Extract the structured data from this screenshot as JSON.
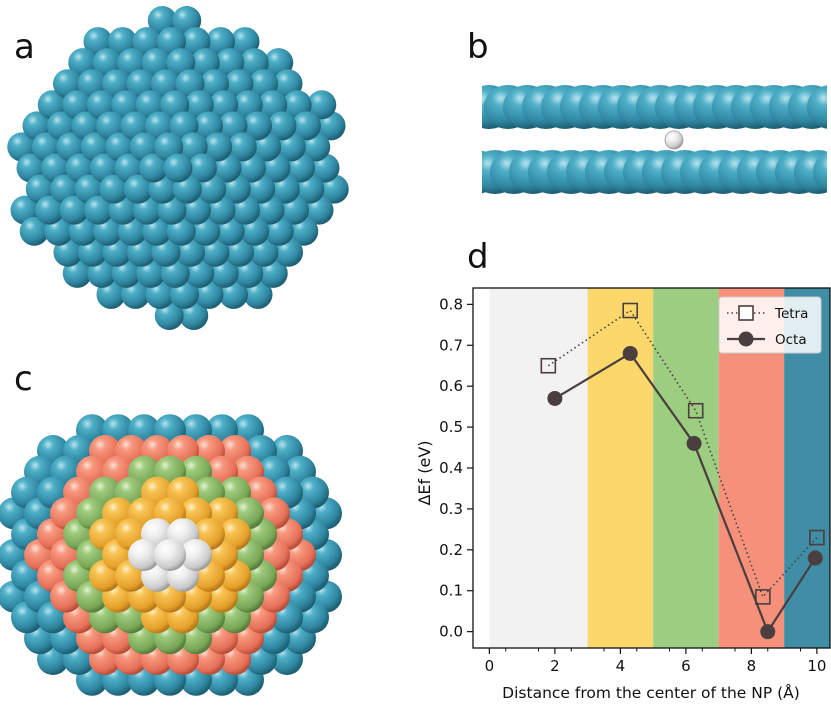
{
  "panels": {
    "a": "a",
    "b": "b",
    "c": "c",
    "d": "d"
  },
  "colors": {
    "sphere_blue": "#3a94ab",
    "sphere_salmon": "#f38a70",
    "sphere_green": "#8fbd6b",
    "sphere_yellow": "#f3b63f",
    "sphere_white": "#e4e4e4",
    "marker": "#4a3e3e"
  },
  "chart_data": {
    "type": "line",
    "xlabel": "Distance from the center of the NP (Å)",
    "ylabel": "ΔEf (eV)",
    "xlim": [
      -0.5,
      10.4
    ],
    "ylim": [
      -0.04,
      0.84
    ],
    "xticks": [
      0,
      2,
      4,
      6,
      8,
      10
    ],
    "yticks": [
      0.0,
      0.1,
      0.2,
      0.3,
      0.4,
      0.5,
      0.6,
      0.7,
      0.8
    ],
    "ytick_labels": [
      "0.0",
      "0.1",
      "0.2",
      "0.3",
      "0.4",
      "0.5",
      "0.6",
      "0.7",
      "0.8"
    ],
    "grid": false,
    "legend": "top-right",
    "bands": [
      {
        "x0": 0,
        "x1": 3,
        "color": "#f2f2f2"
      },
      {
        "x0": 3,
        "x1": 5,
        "color": "#fcd86c"
      },
      {
        "x0": 5,
        "x1": 7,
        "color": "#9ccd80"
      },
      {
        "x0": 7,
        "x1": 9,
        "color": "#f5917b"
      },
      {
        "x0": 9,
        "x1": 10.4,
        "color": "#3f8ea6"
      }
    ],
    "series": [
      {
        "name": "Tetra",
        "marker": "square",
        "style": "dotted",
        "x": [
          1.8,
          4.3,
          6.3,
          8.35,
          10.0
        ],
        "y": [
          0.65,
          0.785,
          0.54,
          0.085,
          0.23
        ]
      },
      {
        "name": "Octa",
        "marker": "circle",
        "style": "solid",
        "x": [
          2.0,
          4.3,
          6.25,
          8.5,
          9.95
        ],
        "y": [
          0.57,
          0.68,
          0.46,
          0.0,
          0.18
        ]
      }
    ]
  }
}
